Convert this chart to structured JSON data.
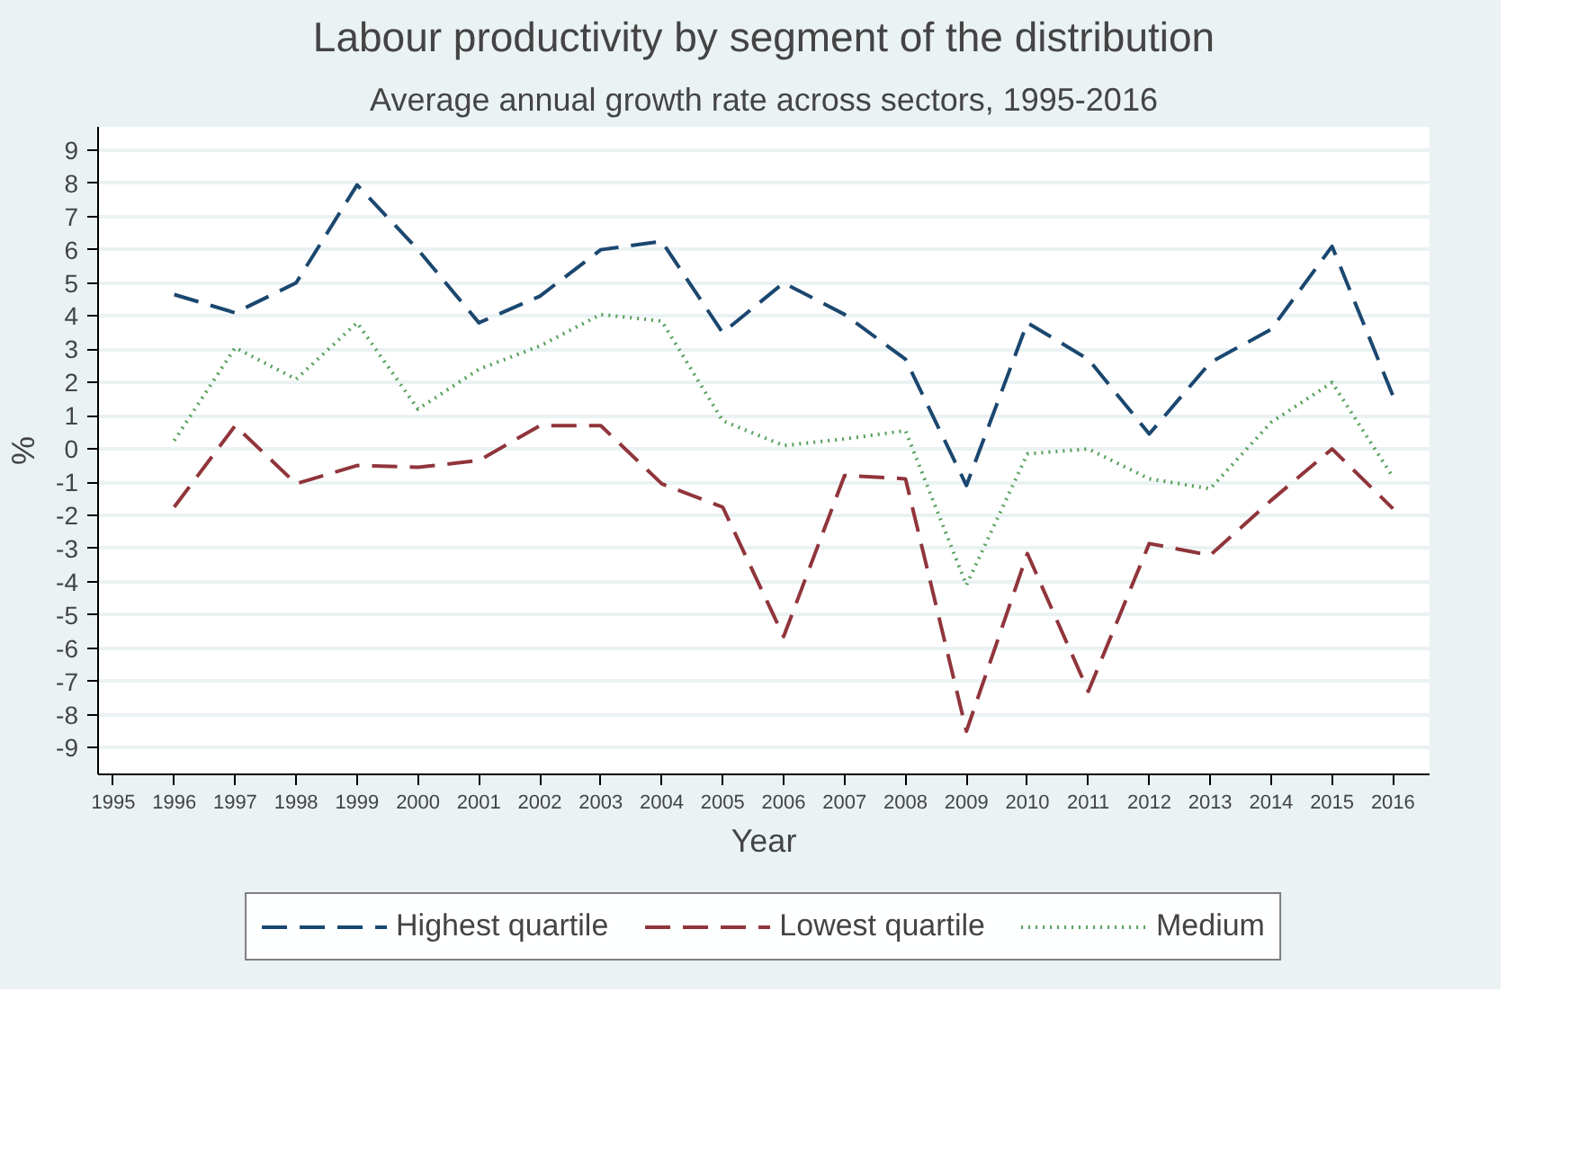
{
  "chart_data": {
    "type": "line",
    "title": "Labour productivity by segment of the distribution",
    "subtitle": "Average annual growth rate across sectors, 1995-2016",
    "xlabel": "Year",
    "ylabel": "%",
    "x": [
      1996,
      1997,
      1998,
      1999,
      2000,
      2001,
      2002,
      2003,
      2004,
      2005,
      2006,
      2007,
      2008,
      2009,
      2010,
      2011,
      2012,
      2013,
      2014,
      2015,
      2016
    ],
    "series": [
      {
        "name": "Highest quartile",
        "color": "#1a476f",
        "line_style": "dashed",
        "values": [
          4.65,
          4.1,
          5.0,
          7.95,
          6.0,
          3.8,
          4.6,
          6.0,
          6.25,
          3.5,
          5.0,
          4.05,
          2.7,
          -1.1,
          3.8,
          2.7,
          0.45,
          2.6,
          3.6,
          6.1,
          1.6
        ]
      },
      {
        "name": "Lowest quartile",
        "color": "#90353b",
        "line_style": "dashed",
        "values": [
          -1.75,
          0.7,
          -1.05,
          -0.5,
          -0.55,
          -0.35,
          0.7,
          0.7,
          -1.05,
          -1.75,
          -5.65,
          -0.8,
          -0.9,
          -8.5,
          -3.15,
          -7.3,
          -2.85,
          -3.2,
          -1.55,
          0.0,
          -1.8
        ]
      },
      {
        "name": "Medium",
        "color": "#55a05a",
        "line_style": "dotted",
        "values": [
          0.25,
          3.05,
          2.1,
          3.8,
          1.2,
          2.4,
          3.1,
          4.05,
          3.85,
          0.85,
          0.1,
          0.3,
          0.55,
          -4.1,
          -0.15,
          0.0,
          -0.9,
          -1.2,
          0.8,
          2.0,
          -0.85
        ]
      }
    ],
    "xlim": [
      1994.75,
      2016.6
    ],
    "ylim": [
      -9.8,
      9.7
    ],
    "xticks": [
      1995,
      1996,
      1997,
      1998,
      1999,
      2000,
      2001,
      2002,
      2003,
      2004,
      2005,
      2006,
      2007,
      2008,
      2009,
      2010,
      2011,
      2012,
      2013,
      2014,
      2015,
      2016
    ],
    "yticks": [
      -9,
      -8,
      -7,
      -6,
      -5,
      -4,
      -3,
      -2,
      -1,
      0,
      1,
      2,
      3,
      4,
      5,
      6,
      7,
      8,
      9
    ],
    "grid": "y",
    "legend": "bottom",
    "marker": "none"
  }
}
